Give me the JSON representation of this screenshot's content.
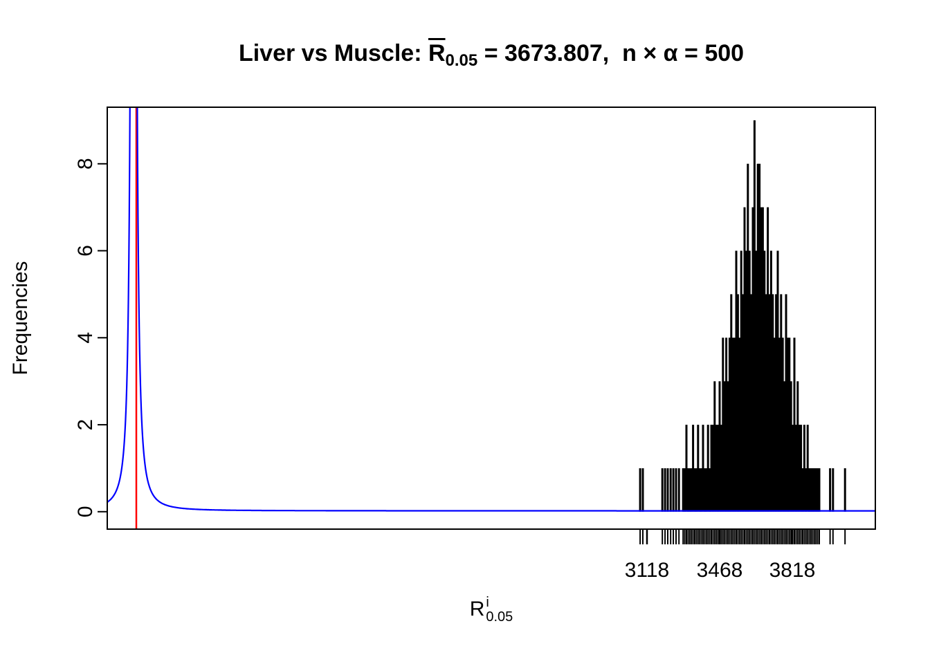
{
  "page": {
    "background": "#ffffff"
  },
  "chart_data": {
    "type": "bar",
    "subtype": "spike-histogram-with-density-and-rug",
    "title": {
      "pre": "Liver vs Muscle: ",
      "r_symbol": "R",
      "r_subscript": "0.05",
      "post": " = 3673.807,  n × α = 500"
    },
    "xlabel": {
      "base": "R",
      "superscript": "i",
      "subscript": "0.05"
    },
    "ylabel": "Frequencies",
    "x_ticks": [
      3118,
      3468,
      3818
    ],
    "y_ticks": [
      0,
      2,
      4,
      6,
      8
    ],
    "xlim": [
      518,
      4218
    ],
    "ylim": [
      -0.4,
      9.3
    ],
    "grid": false,
    "rug_below_axis": true,
    "colors": {
      "spikes": "#000000",
      "density_curve": "#0000ff",
      "reference_line": "#ff0000",
      "frame": "#000000"
    },
    "reference_line_x": 658,
    "density_curve": {
      "shape": "lorentzian",
      "center": 645,
      "gamma": 6,
      "amplitude": 90,
      "baseline": 0.02
    },
    "spikes": {
      "x": [
        3085,
        3098,
        3192,
        3205,
        3218,
        3232,
        3245,
        3258,
        3272,
        3292,
        3300,
        3308,
        3316,
        3324,
        3332,
        3340,
        3348,
        3356,
        3364,
        3372,
        3380,
        3388,
        3396,
        3404,
        3412,
        3420,
        3428,
        3436,
        3444,
        3452,
        3460,
        3468,
        3476,
        3484,
        3492,
        3500,
        3508,
        3516,
        3524,
        3532,
        3540,
        3548,
        3556,
        3564,
        3572,
        3580,
        3588,
        3596,
        3604,
        3612,
        3620,
        3628,
        3636,
        3644,
        3652,
        3660,
        3668,
        3676,
        3684,
        3692,
        3700,
        3708,
        3716,
        3724,
        3732,
        3740,
        3748,
        3756,
        3764,
        3772,
        3780,
        3788,
        3796,
        3804,
        3812,
        3820,
        3828,
        3836,
        3844,
        3852,
        3860,
        3868,
        3876,
        3884,
        3892,
        3900,
        3908,
        3916,
        3924,
        3932,
        3940,
        3948,
        4000,
        4014,
        4072
      ],
      "h": [
        1,
        1,
        1,
        1,
        1,
        1,
        1,
        1,
        1,
        1,
        1,
        2,
        1,
        1,
        1,
        2,
        1,
        1,
        2,
        1,
        1,
        2,
        1,
        1,
        2,
        1,
        2,
        2,
        3,
        2,
        2,
        3,
        2,
        4,
        3,
        4,
        3,
        4,
        5,
        4,
        4,
        6,
        5,
        4,
        6,
        5,
        7,
        6,
        8,
        6,
        5,
        7,
        9,
        6,
        8,
        8,
        7,
        7,
        6,
        5,
        7,
        5,
        6,
        5,
        4,
        5,
        6,
        4,
        5,
        4,
        3,
        5,
        4,
        4,
        3,
        2,
        4,
        2,
        3,
        2,
        2,
        1,
        2,
        1,
        2,
        1,
        1,
        1,
        1,
        1,
        1,
        1,
        1,
        1,
        1
      ]
    }
  }
}
